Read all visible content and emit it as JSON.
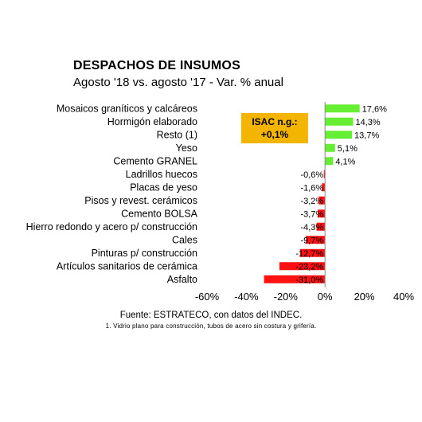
{
  "chart_data": {
    "type": "bar",
    "orientation": "horizontal",
    "title": "DESPACHOS DE INSUMOS",
    "subtitle": "Agosto '18 vs. agosto '17 - Var. % anual",
    "categories": [
      "Mosaicos graníticos y calcáreos",
      "Hormigón elaborado",
      "Resto (1)",
      "Yeso",
      "Cemento GRANEL",
      "Ladrillos huecos",
      "Placas de yeso",
      "Pisos y revest. cerámicos",
      "Cemento BOLSA",
      "Hierro redondo y acero p/ construcción",
      "Cales",
      "Pinturas p/ construcción",
      "Artículos sanitarios de cerámica",
      "Asfalto"
    ],
    "values": [
      17.6,
      14.3,
      13.7,
      5.1,
      4.1,
      -0.6,
      -1.6,
      -3.2,
      -3.7,
      -4.3,
      -9.7,
      -12.7,
      -23.2,
      -31.0
    ],
    "value_labels": [
      "17,6%",
      "14,3%",
      "13,7%",
      "5,1%",
      "4,1%",
      "-0,6%",
      "-1,6%",
      "-3,2%",
      "-3,7%",
      "-4,3%",
      "-9,7%",
      "-12,7%",
      "-23,2%",
      "-31,0%"
    ],
    "xlim": [
      -60,
      40
    ],
    "xticks": [
      -60,
      -40,
      -20,
      0,
      20,
      40
    ],
    "xtick_labels": [
      "-60%",
      "-40%",
      "-20%",
      "0%",
      "20%",
      "40%"
    ],
    "positive_color": "#66ee33",
    "negative_color": "#ff1111",
    "annotation": {
      "line1": "ISAC n.g.:",
      "line2": "+0,1%",
      "color": "#f4b500"
    },
    "source": "Fuente: ESTRATECO, con datos del INDEC.",
    "footnote": "1. Vidrio plano para construcción, tubos de acero sin costura y grifería."
  }
}
